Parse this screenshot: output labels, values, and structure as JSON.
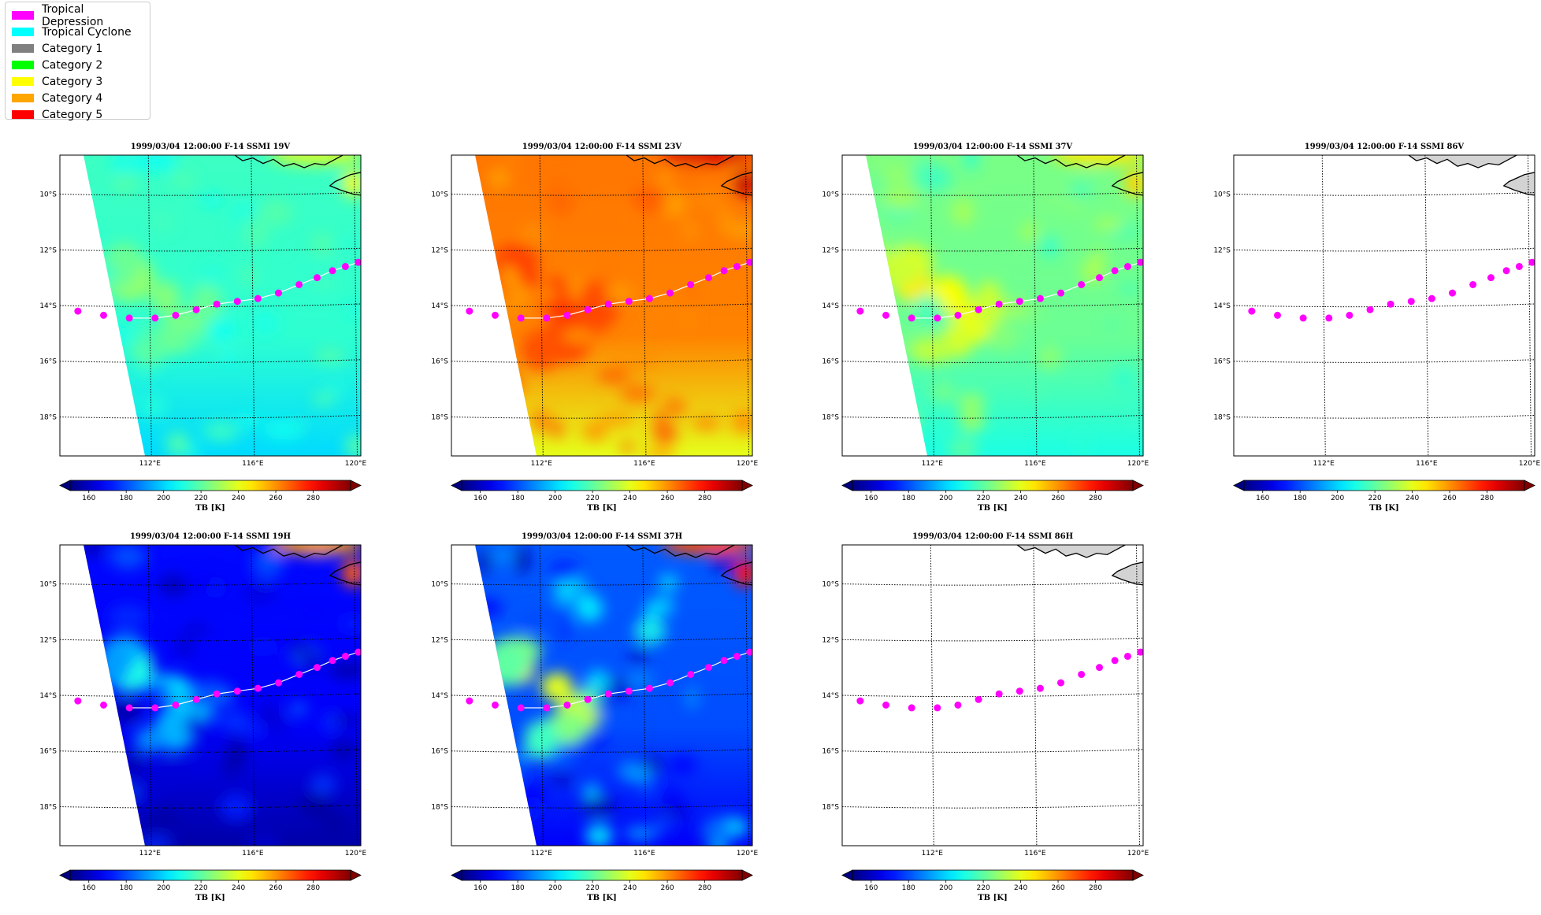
{
  "legend": {
    "items": [
      {
        "label": "Tropical Depression",
        "color": "#ff00ff"
      },
      {
        "label": "Tropical Cyclone",
        "color": "#00ffff"
      },
      {
        "label": "Category 1",
        "color": "#808080"
      },
      {
        "label": "Category 2",
        "color": "#00ff00"
      },
      {
        "label": "Category 3",
        "color": "#ffff00"
      },
      {
        "label": "Category 4",
        "color": "#ffa500"
      },
      {
        "label": "Category 5",
        "color": "#ff0000"
      }
    ]
  },
  "map": {
    "lon_range": [
      108.5,
      120.2
    ],
    "lat_range": [
      -19.4,
      -8.6
    ],
    "lon_ticks": [
      {
        "value": 112,
        "label": "112°E"
      },
      {
        "value": 116,
        "label": "116°E"
      },
      {
        "value": 120,
        "label": "120°E"
      }
    ],
    "lat_ticks": [
      {
        "value": -10,
        "label": "10°S"
      },
      {
        "value": -12,
        "label": "12°S"
      },
      {
        "value": -14,
        "label": "14°S"
      },
      {
        "value": -16,
        "label": "16°S"
      },
      {
        "value": -18,
        "label": "18°S"
      }
    ],
    "colorbar": {
      "label": "TB [K]",
      "min": 150,
      "max": 300,
      "ticks": [
        160,
        180,
        200,
        220,
        240,
        260,
        280
      ],
      "extend": "both",
      "colormap": "jet"
    },
    "track": [
      {
        "lon": 109.2,
        "lat": -14.2
      },
      {
        "lon": 110.2,
        "lat": -14.35
      },
      {
        "lon": 111.2,
        "lat": -14.45
      },
      {
        "lon": 112.2,
        "lat": -14.45
      },
      {
        "lon": 113.0,
        "lat": -14.35
      },
      {
        "lon": 113.8,
        "lat": -14.15
      },
      {
        "lon": 114.6,
        "lat": -13.95
      },
      {
        "lon": 115.4,
        "lat": -13.85
      },
      {
        "lon": 116.2,
        "lat": -13.75
      },
      {
        "lon": 117.0,
        "lat": -13.55
      },
      {
        "lon": 117.8,
        "lat": -13.25
      },
      {
        "lon": 118.5,
        "lat": -13.0
      },
      {
        "lon": 119.1,
        "lat": -12.75
      },
      {
        "lon": 119.6,
        "lat": -12.6
      },
      {
        "lon": 120.1,
        "lat": -12.45
      }
    ],
    "track_color": "#ff00ff",
    "track_line_color": "#ffffff"
  },
  "panels": [
    {
      "id": "19V",
      "title": "1999/03/04 12:00:00  F-14 SSMI 19V",
      "base_tb": 213,
      "warm": "mid",
      "has_data": true
    },
    {
      "id": "23V",
      "title": "1999/03/04 12:00:00  F-14 SSMI 23V",
      "base_tb": 262,
      "warm": "mid",
      "has_data": true
    },
    {
      "id": "37V",
      "title": "1999/03/04 12:00:00  F-14 SSMI 37V",
      "base_tb": 222,
      "warm": "strong",
      "has_data": true
    },
    {
      "id": "86V",
      "title": "1999/03/04 12:00:00  F-14 SSMI 86V",
      "base_tb": null,
      "warm": "none",
      "has_data": false
    },
    {
      "id": "19H",
      "title": "1999/03/04 12:00:00  F-14 SSMI 19H",
      "base_tb": 168,
      "warm": "mid",
      "has_data": true
    },
    {
      "id": "37H",
      "title": "1999/03/04 12:00:00  F-14 SSMI 37H",
      "base_tb": 180,
      "warm": "strong",
      "has_data": true
    },
    {
      "id": "86H",
      "title": "1999/03/04 12:00:00  F-14 SSMI 86H",
      "base_tb": null,
      "warm": "none",
      "has_data": false
    }
  ]
}
